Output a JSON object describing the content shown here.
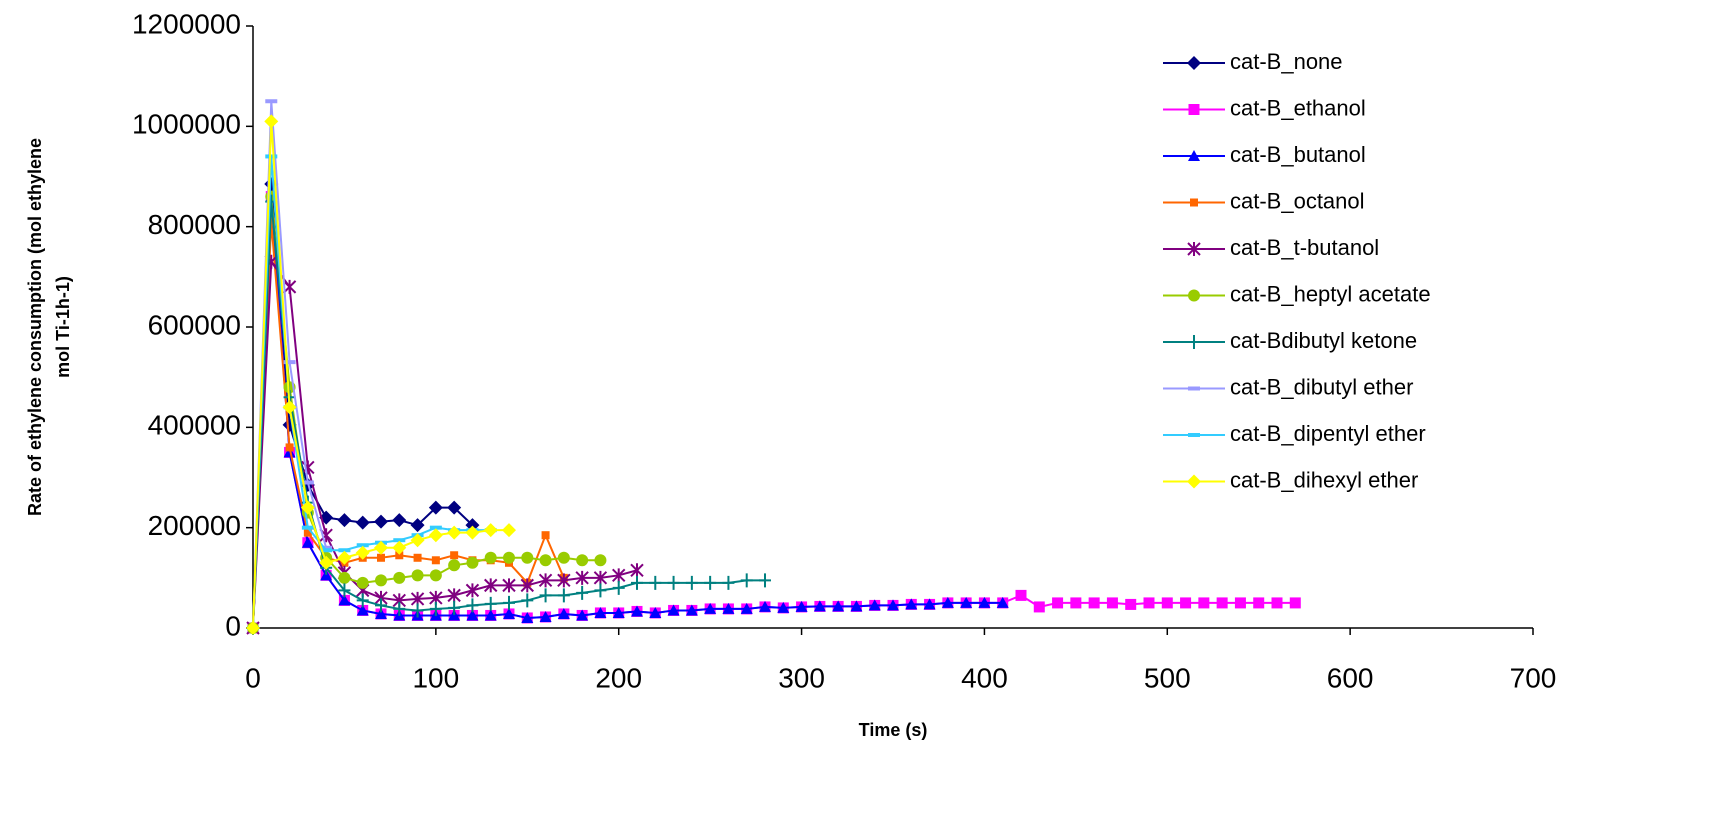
{
  "chart_data": {
    "type": "line",
    "x_label": "Time (s)",
    "y_label": [
      "Rate of ethylene consumption (mol ethylene",
      "mol Ti-1h-1)"
    ],
    "xlim": [
      0,
      700
    ],
    "xticks": [
      0,
      100,
      200,
      300,
      400,
      500,
      600,
      700
    ],
    "ylim": [
      0,
      1200000
    ],
    "yticks": [
      0,
      200000,
      400000,
      600000,
      800000,
      1000000,
      1200000
    ],
    "grid": false,
    "legend": "right",
    "series": [
      {
        "name": "cat-B_none",
        "color": "#000080",
        "marker": "diamond",
        "x": [
          0,
          10,
          20,
          30,
          40,
          50,
          60,
          70,
          80,
          90,
          100,
          110,
          120
        ],
        "values": [
          0,
          885000,
          405000,
          285000,
          220000,
          215000,
          210000,
          212000,
          215000,
          205000,
          240000,
          240000,
          205000
        ]
      },
      {
        "name": "cat-B_ethanol",
        "color": "#ff00ff",
        "marker": "square",
        "x": [
          0,
          10,
          20,
          30,
          40,
          50,
          60,
          70,
          80,
          90,
          100,
          110,
          120,
          130,
          140,
          150,
          160,
          170,
          180,
          190,
          200,
          210,
          220,
          230,
          240,
          250,
          260,
          270,
          280,
          290,
          300,
          310,
          320,
          330,
          340,
          350,
          360,
          370,
          380,
          390,
          400,
          410,
          420,
          430,
          440,
          450,
          460,
          470,
          480,
          490,
          500,
          510,
          520,
          530,
          540,
          550,
          560,
          570
        ],
        "values": [
          0,
          860000,
          350000,
          170000,
          105000,
          55000,
          35000,
          28000,
          25000,
          25000,
          25000,
          25000,
          25000,
          25000,
          28000,
          20000,
          22000,
          28000,
          25000,
          30000,
          30000,
          33000,
          30000,
          35000,
          35000,
          38000,
          38000,
          38000,
          42000,
          40000,
          42000,
          43000,
          43000,
          43000,
          45000,
          45000,
          47000,
          47000,
          50000,
          50000,
          50000,
          50000,
          65000,
          42000,
          50000,
          50000,
          50000,
          50000,
          47000,
          50000,
          50000,
          50000,
          50000,
          50000,
          50000,
          50000,
          50000,
          50000
        ]
      },
      {
        "name": "cat-B_butanol",
        "color": "#0000ff",
        "marker": "triangle",
        "x": [
          0,
          10,
          20,
          30,
          40,
          50,
          60,
          70,
          80,
          90,
          100,
          110,
          120,
          130,
          140,
          150,
          160,
          170,
          180,
          190,
          200,
          210,
          220,
          230,
          240,
          250,
          260,
          270,
          280,
          290,
          300,
          310,
          320,
          330,
          340,
          350,
          360,
          370,
          380,
          390,
          400,
          410
        ],
        "values": [
          0,
          860000,
          350000,
          170000,
          105000,
          55000,
          35000,
          28000,
          25000,
          25000,
          25000,
          25000,
          25000,
          25000,
          28000,
          20000,
          22000,
          28000,
          25000,
          30000,
          30000,
          33000,
          30000,
          35000,
          35000,
          38000,
          38000,
          38000,
          42000,
          40000,
          42000,
          43000,
          43000,
          43000,
          45000,
          45000,
          47000,
          47000,
          50000,
          50000,
          50000,
          50000
        ]
      },
      {
        "name": "cat-B_octanol",
        "color": "#ff6600",
        "marker": "smallsquare",
        "x": [
          0,
          10,
          20,
          30,
          40,
          50,
          60,
          70,
          80,
          90,
          100,
          110,
          120,
          130,
          140,
          150,
          160,
          170
        ],
        "values": [
          0,
          810000,
          360000,
          190000,
          140000,
          130000,
          140000,
          140000,
          145000,
          140000,
          135000,
          145000,
          135000,
          135000,
          130000,
          90000,
          185000,
          100000
        ]
      },
      {
        "name": "cat-B_t-butanol",
        "color": "#800080",
        "marker": "star",
        "x": [
          0,
          10,
          20,
          30,
          40,
          50,
          60,
          70,
          80,
          90,
          100,
          110,
          120,
          130,
          140,
          150,
          160,
          170,
          180,
          190,
          200,
          210
        ],
        "values": [
          0,
          730000,
          680000,
          320000,
          185000,
          110000,
          75000,
          60000,
          55000,
          58000,
          60000,
          65000,
          75000,
          85000,
          85000,
          85000,
          95000,
          95000,
          100000,
          100000,
          105000,
          115000
        ]
      },
      {
        "name": "cat-B_heptyl acetate",
        "color": "#99cc00",
        "marker": "circle",
        "x": [
          0,
          10,
          20,
          30,
          40,
          50,
          60,
          70,
          80,
          90,
          100,
          110,
          120,
          130,
          140,
          150,
          160,
          170,
          180,
          190
        ],
        "values": [
          0,
          860000,
          480000,
          230000,
          140000,
          100000,
          90000,
          95000,
          100000,
          105000,
          105000,
          125000,
          130000,
          140000,
          140000,
          140000,
          135000,
          140000,
          135000,
          135000
        ]
      },
      {
        "name": "cat-Bdibutyl ketone",
        "color": "#008080",
        "marker": "plus",
        "x": [
          0,
          10,
          20,
          30,
          40,
          50,
          60,
          70,
          80,
          90,
          100,
          110,
          120,
          130,
          140,
          150,
          160,
          170,
          180,
          190,
          200,
          210,
          220,
          230,
          240,
          250,
          260,
          270,
          280
        ],
        "values": [
          0,
          850000,
          460000,
          250000,
          120000,
          75000,
          55000,
          45000,
          38000,
          35000,
          38000,
          40000,
          45000,
          48000,
          50000,
          55000,
          65000,
          65000,
          70000,
          75000,
          80000,
          90000,
          90000,
          90000,
          90000,
          90000,
          90000,
          95000,
          95000
        ]
      },
      {
        "name": "cat-B_dibutyl ether",
        "color": "#9999ff",
        "marker": "dash",
        "x": [
          0,
          10,
          20,
          30,
          40
        ],
        "values": [
          0,
          1050000,
          530000,
          290000,
          160000
        ]
      },
      {
        "name": "cat-B_dipentyl ether",
        "color": "#33ccff",
        "marker": "dash",
        "x": [
          0,
          10,
          20,
          30,
          40,
          50,
          60,
          70,
          80,
          90,
          100,
          110,
          120,
          130
        ],
        "values": [
          0,
          940000,
          440000,
          200000,
          155000,
          155000,
          165000,
          170000,
          175000,
          185000,
          200000,
          195000,
          195000,
          195000
        ]
      },
      {
        "name": "cat-B_dihexyl ether",
        "color": "#ffff00",
        "marker": "diamond",
        "x": [
          0,
          10,
          20,
          30,
          40,
          50,
          60,
          70,
          80,
          90,
          100,
          110,
          120,
          130,
          140
        ],
        "values": [
          0,
          1010000,
          440000,
          240000,
          130000,
          140000,
          150000,
          160000,
          160000,
          175000,
          185000,
          190000,
          190000,
          195000,
          195000
        ]
      }
    ]
  }
}
